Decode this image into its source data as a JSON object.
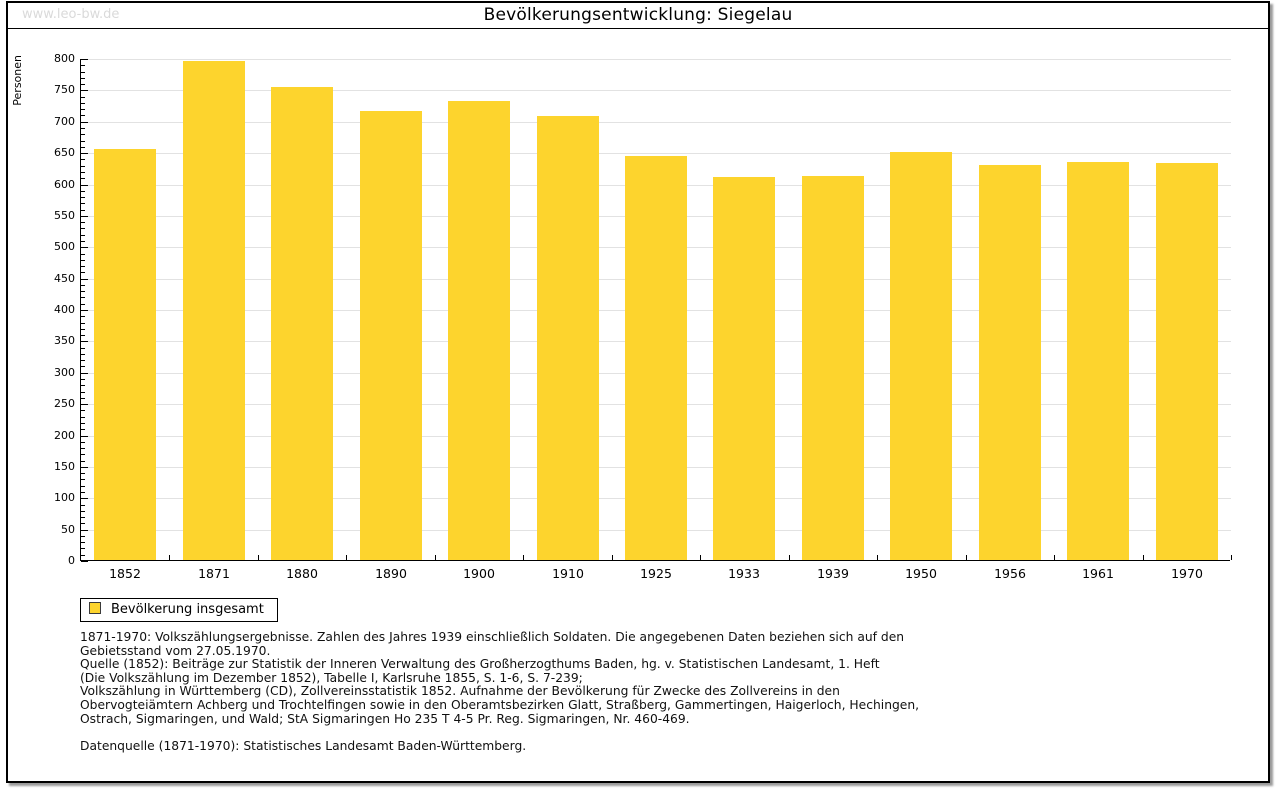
{
  "watermark": "www.leo-bw.de",
  "chart_data": {
    "type": "bar",
    "title": "Bevölkerungsentwicklung: Siegelau",
    "xlabel": "",
    "ylabel": "Personen",
    "categories": [
      "1852",
      "1871",
      "1880",
      "1890",
      "1900",
      "1910",
      "1925",
      "1933",
      "1939",
      "1950",
      "1956",
      "1961",
      "1970"
    ],
    "values": [
      655,
      795,
      753,
      715,
      731,
      707,
      644,
      611,
      612,
      650,
      629,
      634,
      633
    ],
    "ylim": [
      0,
      800
    ],
    "ytick_step": 50,
    "yminor_step": 10,
    "grid": true,
    "bar_color": "#fdd42d",
    "gridline_color": "#e2e2e2",
    "legend": {
      "label": "Bevölkerung insgesamt",
      "position": "bottom-left"
    }
  },
  "footnote_lines": [
    "1871-1970: Volkszählungsergebnisse. Zahlen des Jahres 1939 einschließlich Soldaten. Die angegebenen Daten beziehen sich auf den",
    "Gebietsstand vom 27.05.1970.",
    "Quelle (1852): Beiträge zur Statistik der Inneren Verwaltung des Großherzogthums Baden, hg. v. Statistischen Landesamt, 1. Heft",
    "(Die Volkszählung im Dezember 1852), Tabelle I, Karlsruhe 1855, S. 1-6, S. 7-239;",
    "Volkszählung in Württemberg (CD), Zollvereinsstatistik 1852. Aufnahme der Bevölkerung für Zwecke des Zollvereins in den",
    "Obervogteiämtern Achberg und Trochtelfingen sowie in den Oberamtsbezirken Glatt, Straßberg, Gammertingen, Haigerloch, Hechingen,",
    "Ostrach, Sigmaringen, und Wald; StA Sigmaringen Ho 235 T 4-5 Pr. Reg. Sigmaringen, Nr. 460-469."
  ],
  "datasource": "Datenquelle (1871-1970): Statistisches Landesamt Baden-Württemberg."
}
